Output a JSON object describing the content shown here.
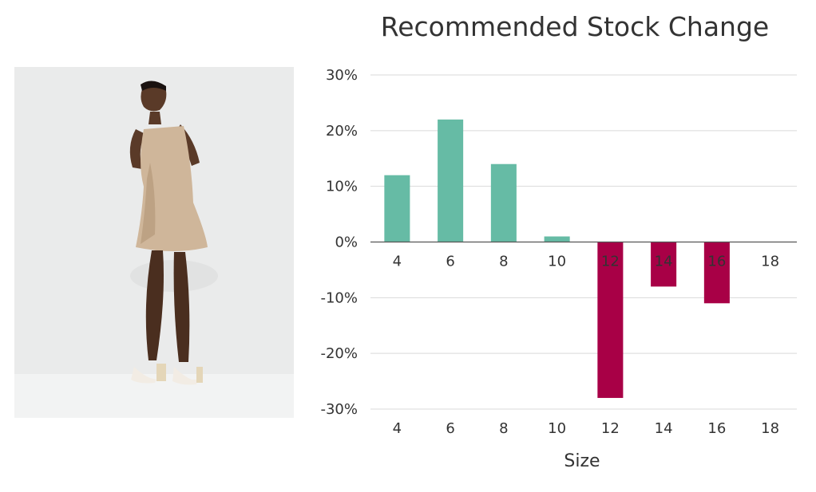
{
  "chart_data": {
    "type": "bar",
    "title": "Recommended Stock Change",
    "xlabel": "Size",
    "ylabel": "",
    "categories": [
      "4",
      "6",
      "8",
      "10",
      "12",
      "14",
      "16",
      "18"
    ],
    "values": [
      12,
      22,
      14,
      1,
      -28,
      -8,
      -11,
      0
    ],
    "ylim": [
      -30,
      30
    ],
    "yticks": [
      "-30%",
      "-20%",
      "-10%",
      "0%",
      "10%",
      "20%",
      "30%"
    ],
    "ytick_values": [
      -30,
      -20,
      -10,
      0,
      10,
      20,
      30
    ],
    "grid": true,
    "positive_color": "#66bba5",
    "negative_color": "#a80046"
  },
  "image": {
    "description": "product photo"
  }
}
